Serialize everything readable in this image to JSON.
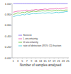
{
  "chart_data": {
    "type": "line",
    "x_label": "Number of samples analysed",
    "categories": [
      "1",
      null,
      "3",
      null,
      "5",
      null,
      "7",
      null,
      "9",
      null,
      "11",
      null,
      "13",
      null,
      "15",
      null,
      "17",
      null,
      "19",
      null,
      "21",
      null,
      "23",
      null,
      "25"
    ],
    "series": [
      {
        "name": "Series1",
        "color": "#7b68ee",
        "values": [
          1.0,
          1.0,
          1.0,
          1.0,
          1.0,
          1.0,
          1.0,
          1.0,
          1.0,
          1.0,
          1.0,
          1.0,
          1.0,
          1.0,
          1.0,
          1.0,
          1.0,
          1.0,
          1.0,
          1.0,
          1.0,
          1.0,
          1.0,
          1.0,
          1.0
        ]
      },
      {
        "name": "L uncertainty",
        "color": "#e85aa8",
        "values": [
          0.84,
          0.85,
          0.86,
          0.86,
          0.87,
          0.87,
          0.88,
          0.87,
          0.88,
          0.88,
          0.89,
          0.88,
          0.89,
          0.89,
          0.9,
          0.89,
          0.9,
          0.9,
          0.9,
          0.91,
          0.9,
          0.91,
          0.91,
          0.92,
          0.92
        ]
      },
      {
        "name": "U uncertainty",
        "color": "#6bbf3a",
        "values": [
          0.8,
          0.81,
          0.83,
          0.82,
          0.84,
          0.83,
          0.85,
          0.84,
          0.85,
          0.86,
          0.85,
          0.86,
          0.86,
          0.87,
          0.86,
          0.87,
          0.87,
          0.86,
          0.87,
          0.88,
          0.87,
          0.88,
          0.87,
          0.88,
          0.88
        ]
      },
      {
        "name": "rate of detection (95% CI) fraction",
        "color": "#3fc6d6",
        "values": [
          0.76,
          0.77,
          0.79,
          0.78,
          0.8,
          0.79,
          0.81,
          0.8,
          0.81,
          0.82,
          0.81,
          0.82,
          0.82,
          0.83,
          0.82,
          0.83,
          0.83,
          0.82,
          0.83,
          0.84,
          0.83,
          0.84,
          0.84,
          0.85,
          0.85
        ]
      }
    ],
    "ylim": [
      0,
      1
    ],
    "yticks": [
      {
        "value": 0,
        "label": "0.00"
      },
      {
        "value": 0.2,
        "label": "0.20"
      },
      {
        "value": 0.4,
        "label": "0.40"
      },
      {
        "value": 0.6,
        "label": "0.60"
      },
      {
        "value": 0.8,
        "label": "0.80"
      },
      {
        "value": 1,
        "label": "1.00"
      }
    ],
    "grid": false,
    "legend": "center"
  }
}
